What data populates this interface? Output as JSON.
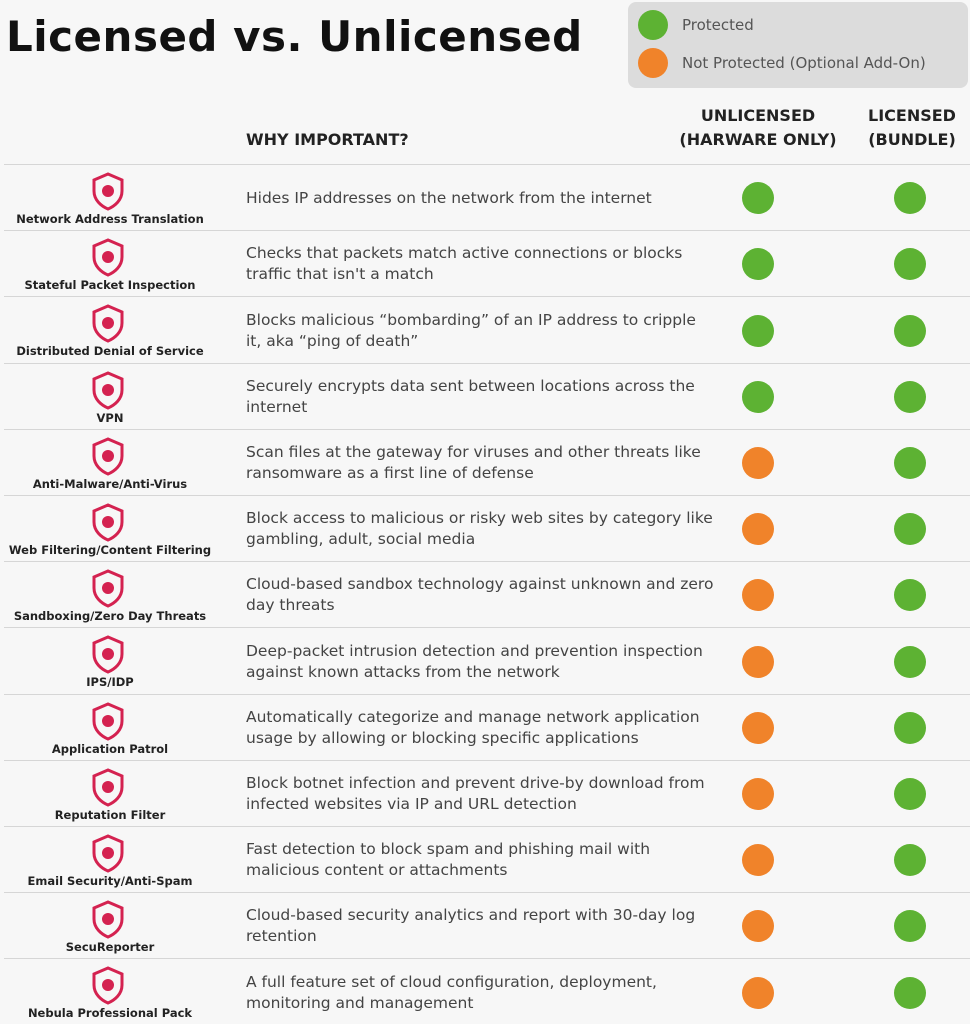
{
  "header": {
    "title": "Licensed vs. Unlicensed"
  },
  "legend": [
    {
      "label": "Protected",
      "color": "#5db233"
    },
    {
      "label": "Not Protected (Optional Add-On)",
      "color": "#f0832a"
    }
  ],
  "table": {
    "columns": [
      [
        "WHY IMPORTANT?"
      ],
      [
        "UNLICENSED",
        "(HARWARE ONLY)"
      ],
      [
        "LICENSED",
        "(BUNDLE)"
      ]
    ],
    "rows": [
      {
        "feature": "Network Address Translation",
        "description": "Hides IP addresses on the network from the internet",
        "unlicensed": "#5db233",
        "licensed": "#5db233"
      },
      {
        "feature": "Stateful Packet Inspection",
        "description": "Checks that packets match active connections or blocks traffic that isn't a match",
        "unlicensed": "#5db233",
        "licensed": "#5db233"
      },
      {
        "feature": "Distributed Denial of Service",
        "description": "Blocks malicious “bombarding” of an IP address to cripple it, aka “ping of death”",
        "unlicensed": "#5db233",
        "licensed": "#5db233"
      },
      {
        "feature": "VPN",
        "description": "Securely encrypts data sent between locations across the internet",
        "unlicensed": "#5db233",
        "licensed": "#5db233"
      },
      {
        "feature": "Anti-Malware/Anti-Virus",
        "description": "Scan files at the gateway for viruses and other threats like ransomware as a first line of defense",
        "unlicensed": "#f0832a",
        "licensed": "#5db233"
      },
      {
        "feature": "Web Filtering/Content Filtering",
        "description": "Block access to malicious or risky web sites by category like gambling, adult, social media",
        "unlicensed": "#f0832a",
        "licensed": "#5db233"
      },
      {
        "feature": "Sandboxing/Zero Day Threats",
        "description": "Cloud-based sandbox technology against unknown and zero day threats",
        "unlicensed": "#f0832a",
        "licensed": "#5db233"
      },
      {
        "feature": "IPS/IDP",
        "description": "Deep-packet intrusion detection and prevention inspection against known attacks from the network",
        "unlicensed": "#f0832a",
        "licensed": "#5db233"
      },
      {
        "feature": "Application Patrol",
        "description": "Automatically categorize and manage network application usage by allowing or blocking specific applications",
        "unlicensed": "#f0832a",
        "licensed": "#5db233"
      },
      {
        "feature": "Reputation Filter",
        "description": "Block botnet infection and prevent drive-by download from infected websites via IP and URL detection",
        "unlicensed": "#f0832a",
        "licensed": "#5db233"
      },
      {
        "feature": "Email Security/Anti-Spam",
        "description": "Fast detection to block spam and phishing mail with malicious content or attachments",
        "unlicensed": "#f0832a",
        "licensed": "#5db233"
      },
      {
        "feature": "SecuReporter",
        "description": "Cloud-based security analytics and report with 30-day log retention",
        "unlicensed": "#f0832a",
        "licensed": "#5db233"
      },
      {
        "feature": "Nebula Professional Pack",
        "description": "A full feature set of cloud configuration, deployment, monitoring and management",
        "unlicensed": "#f0832a",
        "licensed": "#5db233"
      }
    ]
  }
}
